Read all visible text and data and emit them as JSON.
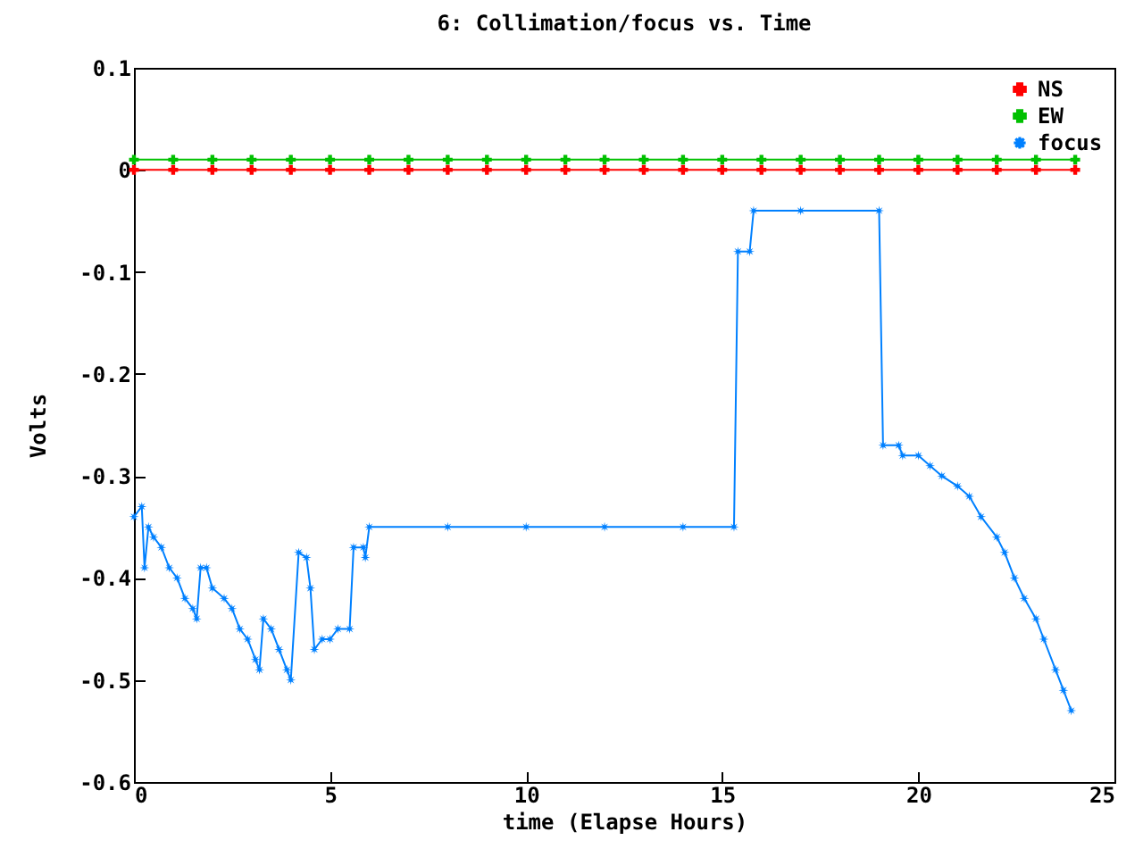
{
  "chart_data": {
    "type": "line",
    "title": "6: Collimation/focus vs. Time",
    "xlabel": "time (Elapse Hours)",
    "ylabel": "Volts",
    "xlim": [
      0,
      25
    ],
    "xticks": [
      0,
      5,
      10,
      15,
      20,
      25
    ],
    "ylim": [
      -0.6,
      0.1
    ],
    "yticks": [
      -0.6,
      -0.5,
      -0.4,
      -0.3,
      -0.2,
      -0.1,
      0,
      0.1
    ],
    "grid": false,
    "legend": "top right",
    "series": [
      {
        "name": "NS",
        "color": "#ff0000",
        "marker": "cross",
        "x": [
          0,
          1,
          2,
          3,
          4,
          5,
          6,
          7,
          8,
          9,
          10,
          11,
          12,
          13,
          14,
          15,
          16,
          17,
          18,
          19,
          20,
          21,
          22,
          23,
          24
        ],
        "values": [
          0,
          0,
          0,
          0,
          0,
          0,
          0,
          0,
          0,
          0,
          0,
          0,
          0,
          0,
          0,
          0,
          0,
          0,
          0,
          0,
          0,
          0,
          0,
          0,
          0
        ]
      },
      {
        "name": "EW",
        "color": "#00c000",
        "marker": "cross",
        "x": [
          0,
          1,
          2,
          3,
          4,
          5,
          6,
          7,
          8,
          9,
          10,
          11,
          12,
          13,
          14,
          15,
          16,
          17,
          18,
          19,
          20,
          21,
          22,
          23,
          24
        ],
        "values": [
          0.01,
          0.01,
          0.01,
          0.01,
          0.01,
          0.01,
          0.01,
          0.01,
          0.01,
          0.01,
          0.01,
          0.01,
          0.01,
          0.01,
          0.01,
          0.01,
          0.01,
          0.01,
          0.01,
          0.01,
          0.01,
          0.01,
          0.01,
          0.01,
          0.01
        ]
      },
      {
        "name": "focus",
        "color": "#0080ff",
        "marker": "star",
        "x": [
          0,
          0.2,
          0.27,
          0.37,
          0.5,
          0.7,
          0.9,
          1.1,
          1.3,
          1.5,
          1.6,
          1.7,
          1.85,
          2.0,
          2.3,
          2.5,
          2.7,
          2.9,
          3.1,
          3.2,
          3.3,
          3.5,
          3.7,
          3.9,
          4.0,
          4.2,
          4.4,
          4.5,
          4.6,
          4.8,
          5.0,
          5.2,
          5.5,
          5.6,
          5.85,
          5.9,
          6.0,
          8,
          10,
          12,
          14,
          15.3,
          15.4,
          15.7,
          15.8,
          17,
          19.0,
          19.1,
          19.5,
          19.6,
          20.0,
          20.3,
          20.6,
          21.0,
          21.3,
          21.6,
          22.0,
          22.2,
          22.45,
          22.7,
          23.0,
          23.2,
          23.5,
          23.7,
          23.9
        ],
        "values": [
          -0.34,
          -0.33,
          -0.39,
          -0.35,
          -0.36,
          -0.37,
          -0.39,
          -0.4,
          -0.42,
          -0.43,
          -0.44,
          -0.39,
          -0.39,
          -0.41,
          -0.42,
          -0.43,
          -0.45,
          -0.46,
          -0.48,
          -0.49,
          -0.44,
          -0.45,
          -0.47,
          -0.49,
          -0.5,
          -0.375,
          -0.38,
          -0.41,
          -0.47,
          -0.46,
          -0.46,
          -0.45,
          -0.45,
          -0.37,
          -0.37,
          -0.38,
          -0.35,
          -0.35,
          -0.35,
          -0.35,
          -0.35,
          -0.35,
          -0.08,
          -0.08,
          -0.04,
          -0.04,
          -0.04,
          -0.27,
          -0.27,
          -0.28,
          -0.28,
          -0.29,
          -0.3,
          -0.31,
          -0.32,
          -0.34,
          -0.36,
          -0.375,
          -0.4,
          -0.42,
          -0.44,
          -0.46,
          -0.49,
          -0.51,
          -0.53
        ]
      }
    ]
  }
}
